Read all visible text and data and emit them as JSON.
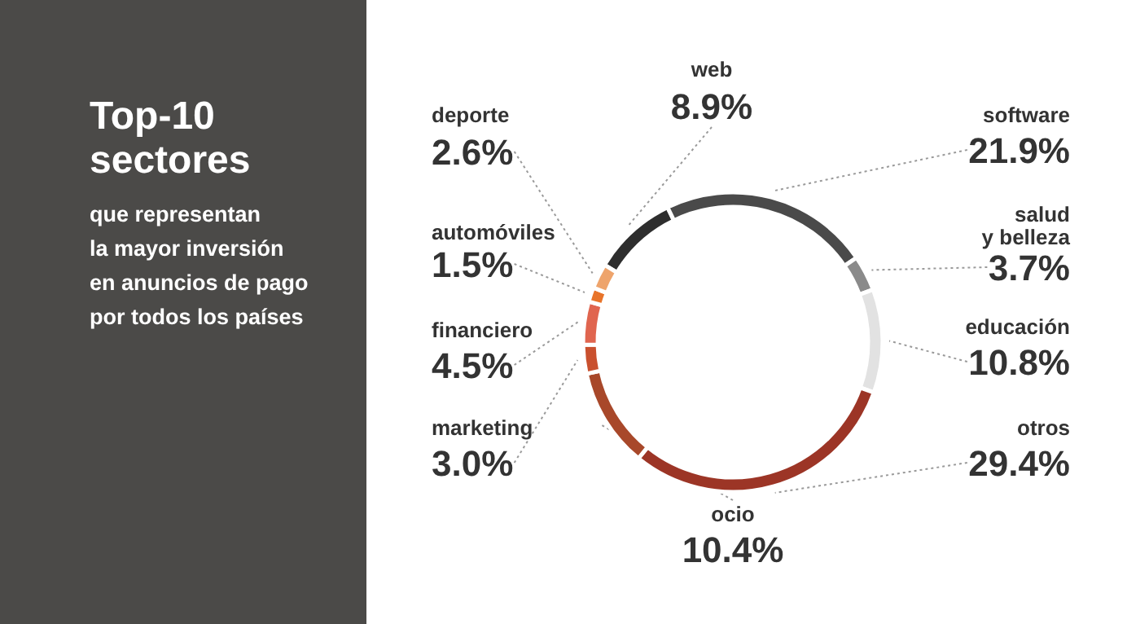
{
  "chart_data": {
    "type": "donut",
    "title": "Top-10\nsectores",
    "subtitle": "que representan\nla mayor inversión\nen anuncios de pago\npor todos los países",
    "categories": [
      "web",
      "software",
      "salud\ny belleza",
      "educación",
      "otros",
      "ocio",
      "marketing",
      "financiero",
      "automóviles",
      "deporte"
    ],
    "values": [
      8.9,
      21.9,
      3.7,
      10.8,
      29.4,
      10.4,
      3.0,
      4.5,
      1.5,
      2.6
    ],
    "colors": [
      "#2e2e2e",
      "#4a4a4a",
      "#8a8a8a",
      "#e2e2e2",
      "#9c3526",
      "#a8482a",
      "#c9502e",
      "#e0654f",
      "#e8742a",
      "#eea46c"
    ],
    "value_labels": [
      "8.9%",
      "21.9%",
      "3.7%",
      "10.8%",
      "29.4%",
      "10.4%",
      "3.0%",
      "4.5%",
      "1.5%",
      "2.6%"
    ]
  }
}
